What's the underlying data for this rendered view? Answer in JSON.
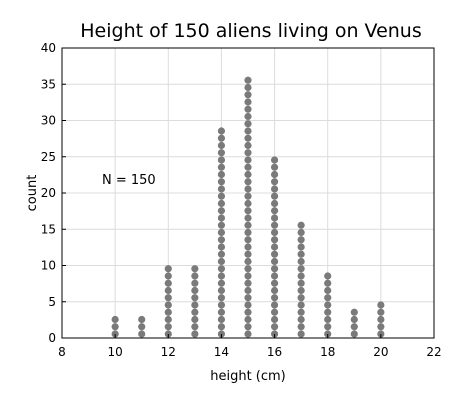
{
  "chart_data": {
    "type": "scatter",
    "subtype": "dot-plot",
    "title": "Height of 150 aliens living on Venus",
    "xlabel": "height (cm)",
    "ylabel": "count",
    "xlim": [
      8,
      22
    ],
    "ylim": [
      0,
      40
    ],
    "xticks": [
      8,
      10,
      12,
      14,
      16,
      18,
      20,
      22
    ],
    "yticks": [
      0,
      5,
      10,
      15,
      20,
      25,
      30,
      35,
      40
    ],
    "grid": true,
    "legend": null,
    "annotation": "N = 150",
    "marker_color": "#7a7a7a",
    "series": [
      {
        "x": [
          10,
          11,
          12,
          13,
          14,
          15,
          16,
          17,
          18,
          19,
          20
        ],
        "counts": [
          3,
          3,
          10,
          10,
          29,
          36,
          25,
          16,
          9,
          4,
          5
        ]
      }
    ]
  }
}
